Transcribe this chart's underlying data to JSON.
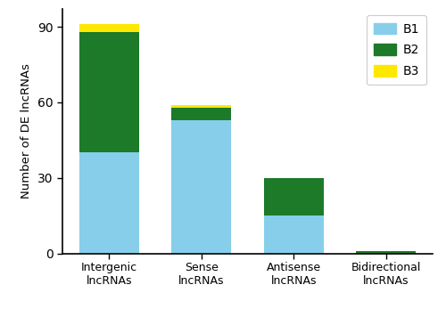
{
  "categories": [
    "Intergenic\nlncRNAs",
    "Sense\nlncRNAs",
    "Antisense\nlncRNAs",
    "Bidirectional\nlncRNAs"
  ],
  "B1": [
    40,
    53,
    15,
    0
  ],
  "B2": [
    48,
    5,
    15,
    1
  ],
  "B3": [
    3,
    1,
    0,
    0
  ],
  "color_B1": "#87CEEB",
  "color_B2": "#1C7A28",
  "color_B3": "#FFE800",
  "ylabel": "Number of DE lncRNAs",
  "ylim": [
    0,
    97
  ],
  "yticks": [
    0,
    30,
    60,
    90
  ],
  "legend_labels": [
    "B1",
    "B2",
    "B3"
  ],
  "bar_width": 0.65,
  "figure_width": 5.0,
  "figure_height": 3.47,
  "dpi": 100
}
